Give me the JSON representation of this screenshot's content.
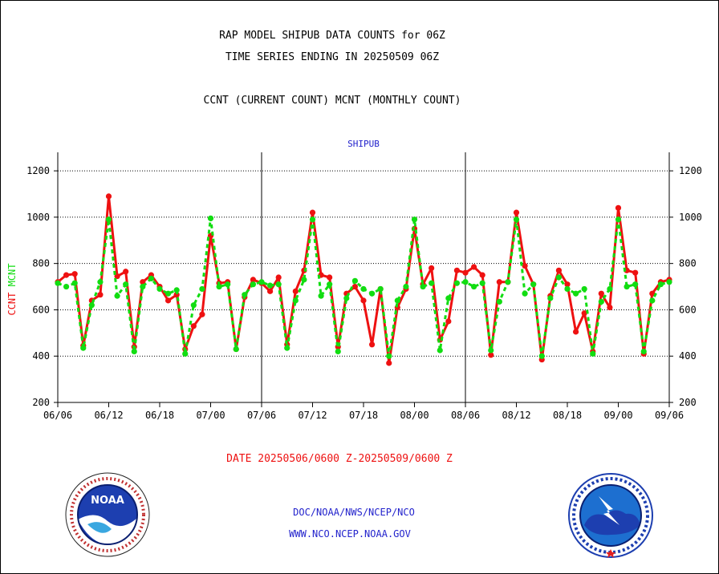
{
  "title_line1": "RAP MODEL SHIPUB DATA COUNTS for 06Z",
  "title_line2": "TIME SERIES ENDING IN 20250509 06Z",
  "subtitle": "CCNT (CURRENT COUNT) MCNT (MONTHLY COUNT)",
  "date_range": "DATE 20250506/0600 Z-20250509/0600 Z",
  "footer_org": "DOC/NOAA/NWS/NCEP/NCO",
  "footer_url": "WWW.NCO.NCEP.NOAA.GOV",
  "colors": {
    "ccnt": "#ee1111",
    "mcnt": "#11dd11",
    "text_blue": "#2222cc",
    "text_red": "#ee1111"
  },
  "logos": {
    "left": "NOAA",
    "right": "NATIONAL WEATHER SERVICE"
  },
  "chart_data": {
    "type": "line",
    "title": "SHIPUB",
    "ylabel_ccnt": "CCNT",
    "ylabel_mcnt": "MCNT",
    "ylim": [
      200,
      1280
    ],
    "yticks": [
      200,
      400,
      600,
      800,
      1000,
      1200
    ],
    "xticks": [
      "06/06",
      "06/12",
      "06/18",
      "07/00",
      "07/06",
      "07/12",
      "07/18",
      "08/00",
      "08/06",
      "08/12",
      "08/18",
      "09/00",
      "09/06"
    ],
    "x_hour_range": [
      0,
      72
    ],
    "grid": true,
    "series": [
      {
        "name": "CCNT",
        "color": "#ee1111",
        "x": [
          0,
          1,
          2,
          3,
          4,
          5,
          6,
          7,
          8,
          9,
          10,
          11,
          12,
          13,
          14,
          15,
          16,
          17,
          18,
          19,
          20,
          21,
          22,
          23,
          24,
          25,
          26,
          27,
          28,
          29,
          30,
          31,
          32,
          33,
          34,
          35,
          36,
          37,
          38,
          39,
          40,
          41,
          42,
          43,
          44,
          45,
          46,
          47,
          48,
          49,
          50,
          51,
          52,
          53,
          54,
          55,
          56,
          57,
          58,
          59,
          60,
          61,
          62,
          63,
          64,
          65,
          66,
          67,
          68,
          69,
          70,
          71,
          72
        ],
        "values": [
          720,
          750,
          755,
          445,
          640,
          665,
          1090,
          745,
          765,
          440,
          720,
          750,
          700,
          640,
          665,
          430,
          530,
          580,
          920,
          715,
          720,
          430,
          655,
          730,
          715,
          680,
          740,
          450,
          680,
          770,
          1020,
          750,
          740,
          440,
          670,
          700,
          640,
          450,
          690,
          370,
          610,
          690,
          950,
          710,
          780,
          470,
          550,
          770,
          760,
          785,
          750,
          405,
          720,
          720,
          1020,
          790,
          710,
          385,
          660,
          770,
          710,
          505,
          585,
          420,
          670,
          610,
          1040,
          770,
          760,
          410,
          670,
          720,
          730
        ]
      },
      {
        "name": "MCNT",
        "color": "#11dd11",
        "x": [
          0,
          1,
          2,
          3,
          4,
          5,
          6,
          7,
          8,
          9,
          10,
          11,
          12,
          13,
          14,
          15,
          16,
          17,
          18,
          19,
          20,
          21,
          22,
          23,
          24,
          25,
          26,
          27,
          28,
          29,
          30,
          31,
          32,
          33,
          34,
          35,
          36,
          37,
          38,
          39,
          40,
          41,
          42,
          43,
          44,
          45,
          46,
          47,
          48,
          49,
          50,
          51,
          52,
          53,
          54,
          55,
          56,
          57,
          58,
          59,
          60,
          61,
          62,
          63,
          64,
          65,
          66,
          67,
          68,
          69,
          70,
          71,
          72
        ],
        "values": [
          715,
          700,
          715,
          435,
          620,
          720,
          990,
          660,
          710,
          420,
          700,
          735,
          690,
          670,
          685,
          410,
          620,
          690,
          995,
          700,
          710,
          430,
          665,
          710,
          720,
          705,
          710,
          435,
          640,
          730,
          990,
          660,
          710,
          420,
          650,
          725,
          690,
          670,
          690,
          400,
          640,
          700,
          990,
          700,
          715,
          425,
          650,
          715,
          720,
          700,
          715,
          425,
          635,
          720,
          990,
          670,
          710,
          400,
          650,
          740,
          690,
          670,
          690,
          410,
          635,
          690,
          990,
          700,
          710,
          420,
          640,
          710,
          720
        ]
      }
    ]
  }
}
